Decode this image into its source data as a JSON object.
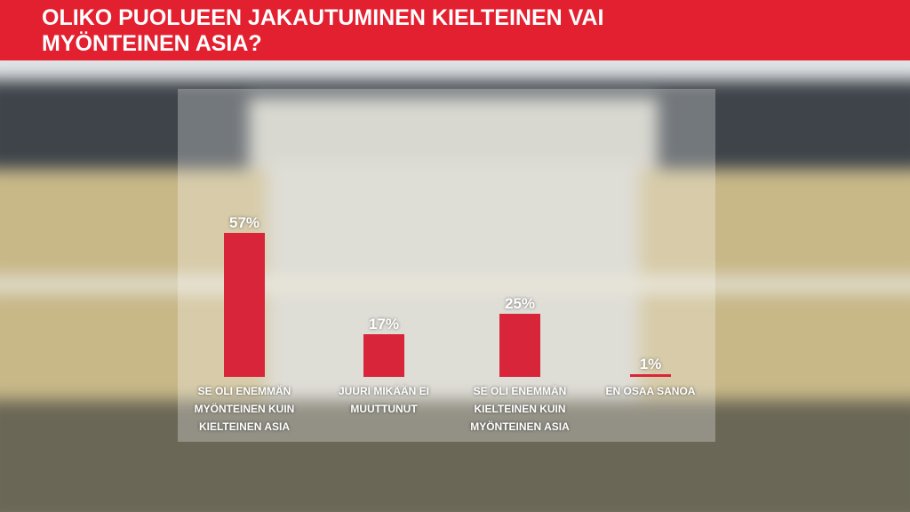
{
  "chart_data": {
    "type": "bar",
    "title": "OLIKO PUOLUEEN JAKAUTUMINEN KIELTEINEN VAI MYÖNTEINEN ASIA?",
    "categories": [
      "SE OLI ENEMMÄN MYÖNTEINEN KUIN KIELTEINEN ASIA",
      "JUURI MIKÄÄN EI MUUTTUNUT",
      "SE OLI ENEMMÄN KIELTEINEN KUIN MYÖNTEINEN ASIA",
      "EN OSAA SANOA"
    ],
    "values": [
      57,
      17,
      25,
      1
    ],
    "value_labels": [
      "57%",
      "17%",
      "25%",
      "1%"
    ],
    "color": "#d9253a"
  }
}
